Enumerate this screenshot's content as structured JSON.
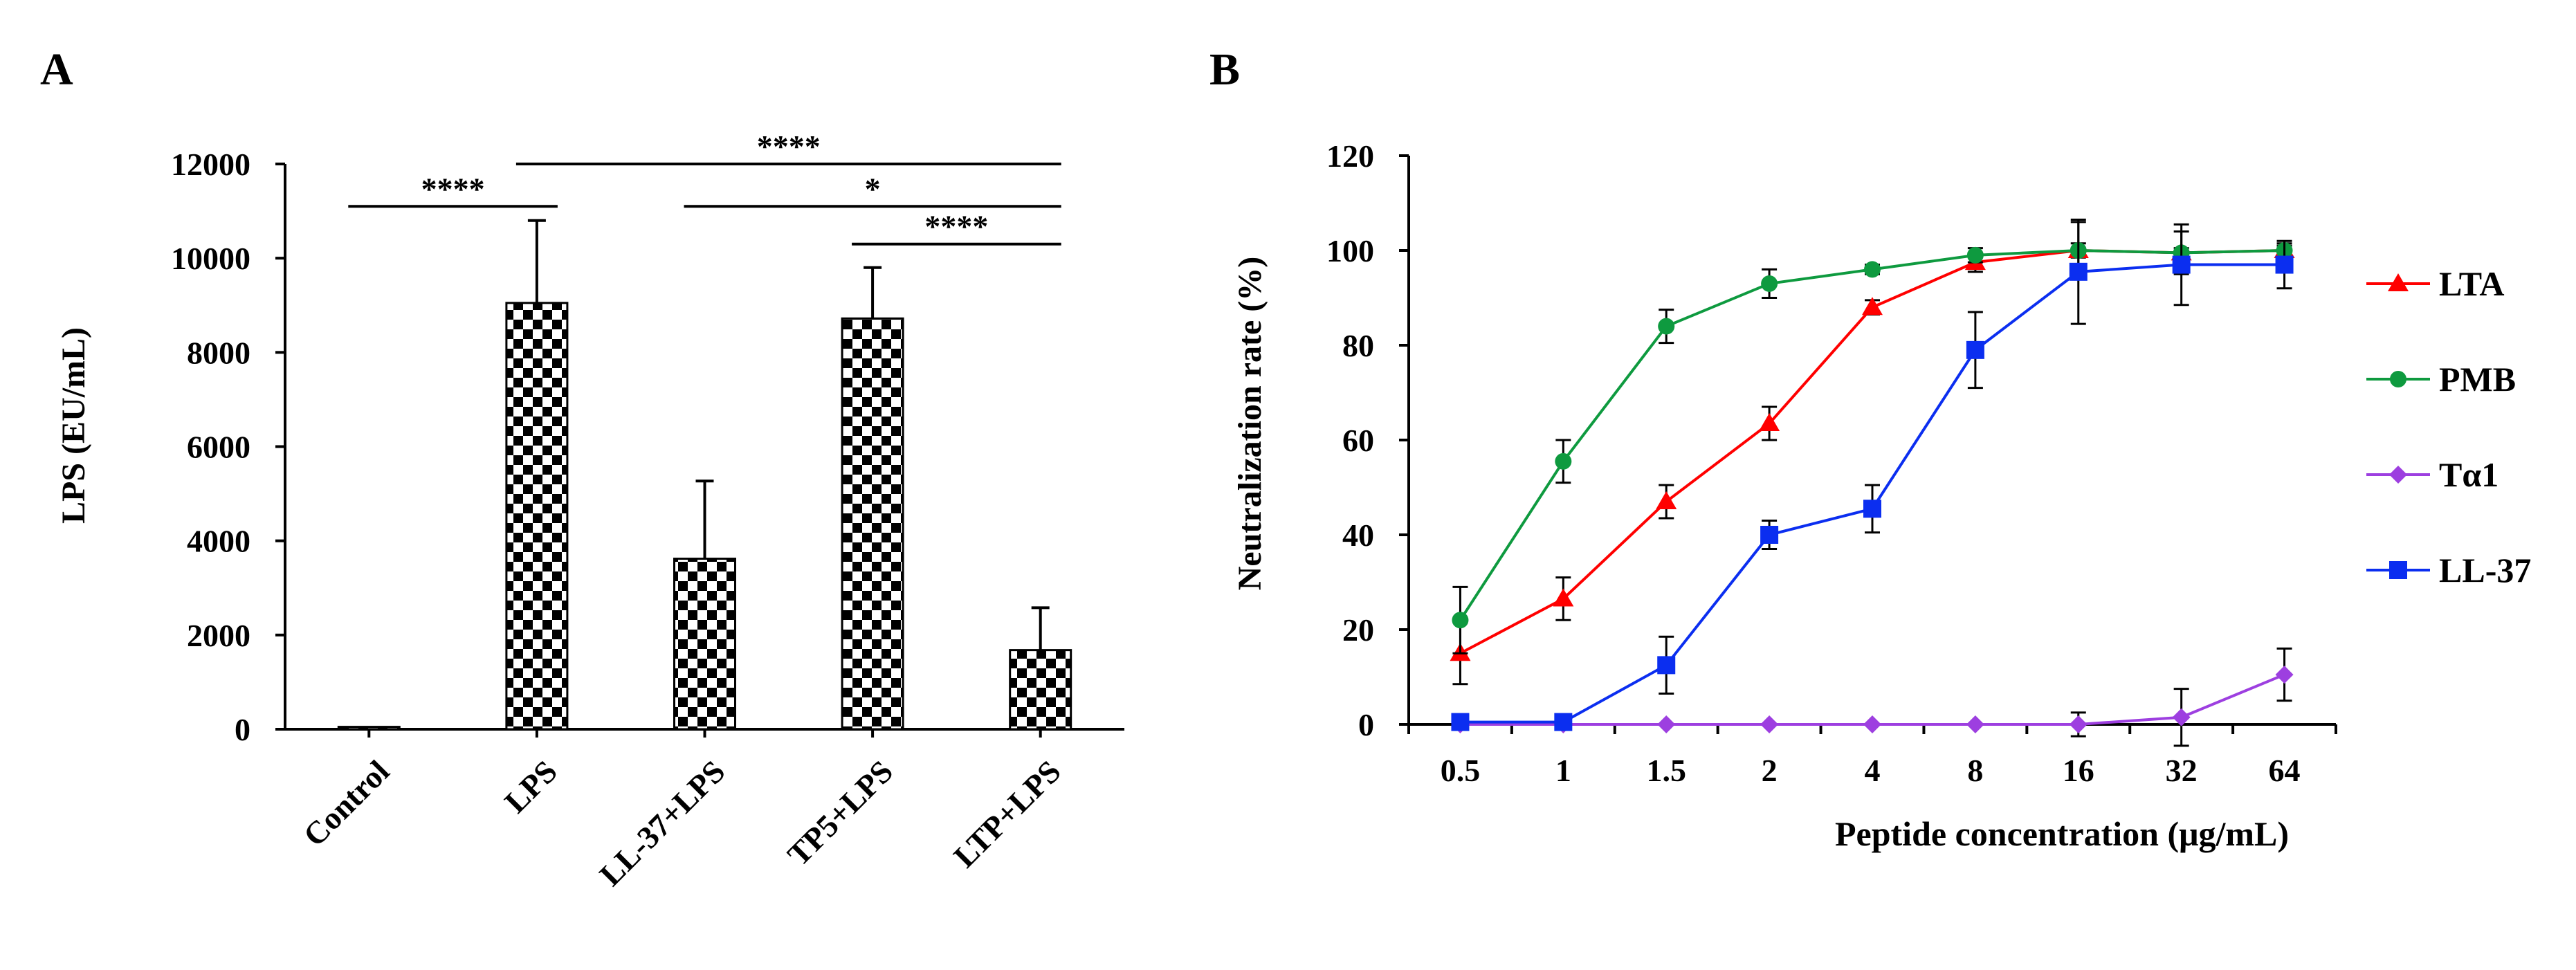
{
  "figure": {
    "panel_a_label": "A",
    "panel_b_label": "B"
  },
  "chart_data": [
    {
      "type": "bar",
      "panel": "A",
      "title": "",
      "xlabel": "",
      "ylabel": "LPS (EU/mL)",
      "ylim": [
        0,
        12000
      ],
      "yticks": [
        0,
        2000,
        4000,
        6000,
        8000,
        10000,
        12000
      ],
      "categories": [
        "Control",
        "LPS",
        "LL-37+LPS",
        "TP5+LPS",
        "LTP+LPS"
      ],
      "values": [
        50,
        9050,
        3620,
        8720,
        1680
      ],
      "errors": [
        0,
        1750,
        1650,
        1080,
        900
      ],
      "pattern": "checkerboard",
      "significance": [
        {
          "from": 0,
          "to": 1,
          "label": "****",
          "y": 11100
        },
        {
          "from": 1,
          "to": 4,
          "label": "****",
          "y": 12000
        },
        {
          "from": 2,
          "to": 4,
          "label": "*",
          "y": 11100
        },
        {
          "from": 3,
          "to": 4,
          "label": "****",
          "y": 10300
        }
      ]
    },
    {
      "type": "line",
      "panel": "B",
      "title": "",
      "xlabel": "Peptide concentration (μg/mL)",
      "ylabel": "Neutralization rate (%)",
      "ylim": [
        0,
        120
      ],
      "yticks": [
        0,
        20,
        40,
        60,
        80,
        100,
        120
      ],
      "categories": [
        "0.5",
        "1",
        "1.5",
        "2",
        "4",
        "8",
        "16",
        "32",
        "64"
      ],
      "legend_position": "right",
      "series": [
        {
          "name": "LTA",
          "color": "#ff0000",
          "marker": "triangle",
          "values": [
            15,
            26.5,
            47,
            63.5,
            88,
            97.5,
            100,
            99.5,
            100
          ],
          "errors": [
            6.5,
            4.5,
            3.5,
            3.5,
            1.5,
            2,
            1.5,
            1,
            1
          ]
        },
        {
          "name": "PMB",
          "color": "#0e9a3f",
          "marker": "circle",
          "values": [
            22,
            55.5,
            84,
            93,
            96,
            99,
            100,
            99.5,
            100
          ],
          "errors": [
            7,
            4.5,
            3.5,
            3,
            1,
            1.5,
            6,
            4.5,
            1.5
          ]
        },
        {
          "name": "Tα1",
          "color": "#9d3fe0",
          "marker": "diamond",
          "values": [
            0,
            0,
            0,
            0,
            0,
            0,
            0,
            1.5,
            10.5
          ],
          "errors": [
            0,
            0,
            0,
            0,
            0,
            0,
            2.5,
            6,
            5.5
          ]
        },
        {
          "name": "LL-37",
          "color": "#0b2ef0",
          "marker": "square",
          "values": [
            0.5,
            0.5,
            12.5,
            40,
            45.5,
            79,
            95.5,
            97,
            97
          ],
          "errors": [
            0,
            0,
            6,
            3,
            5,
            8,
            11,
            8.5,
            5
          ]
        }
      ]
    }
  ]
}
